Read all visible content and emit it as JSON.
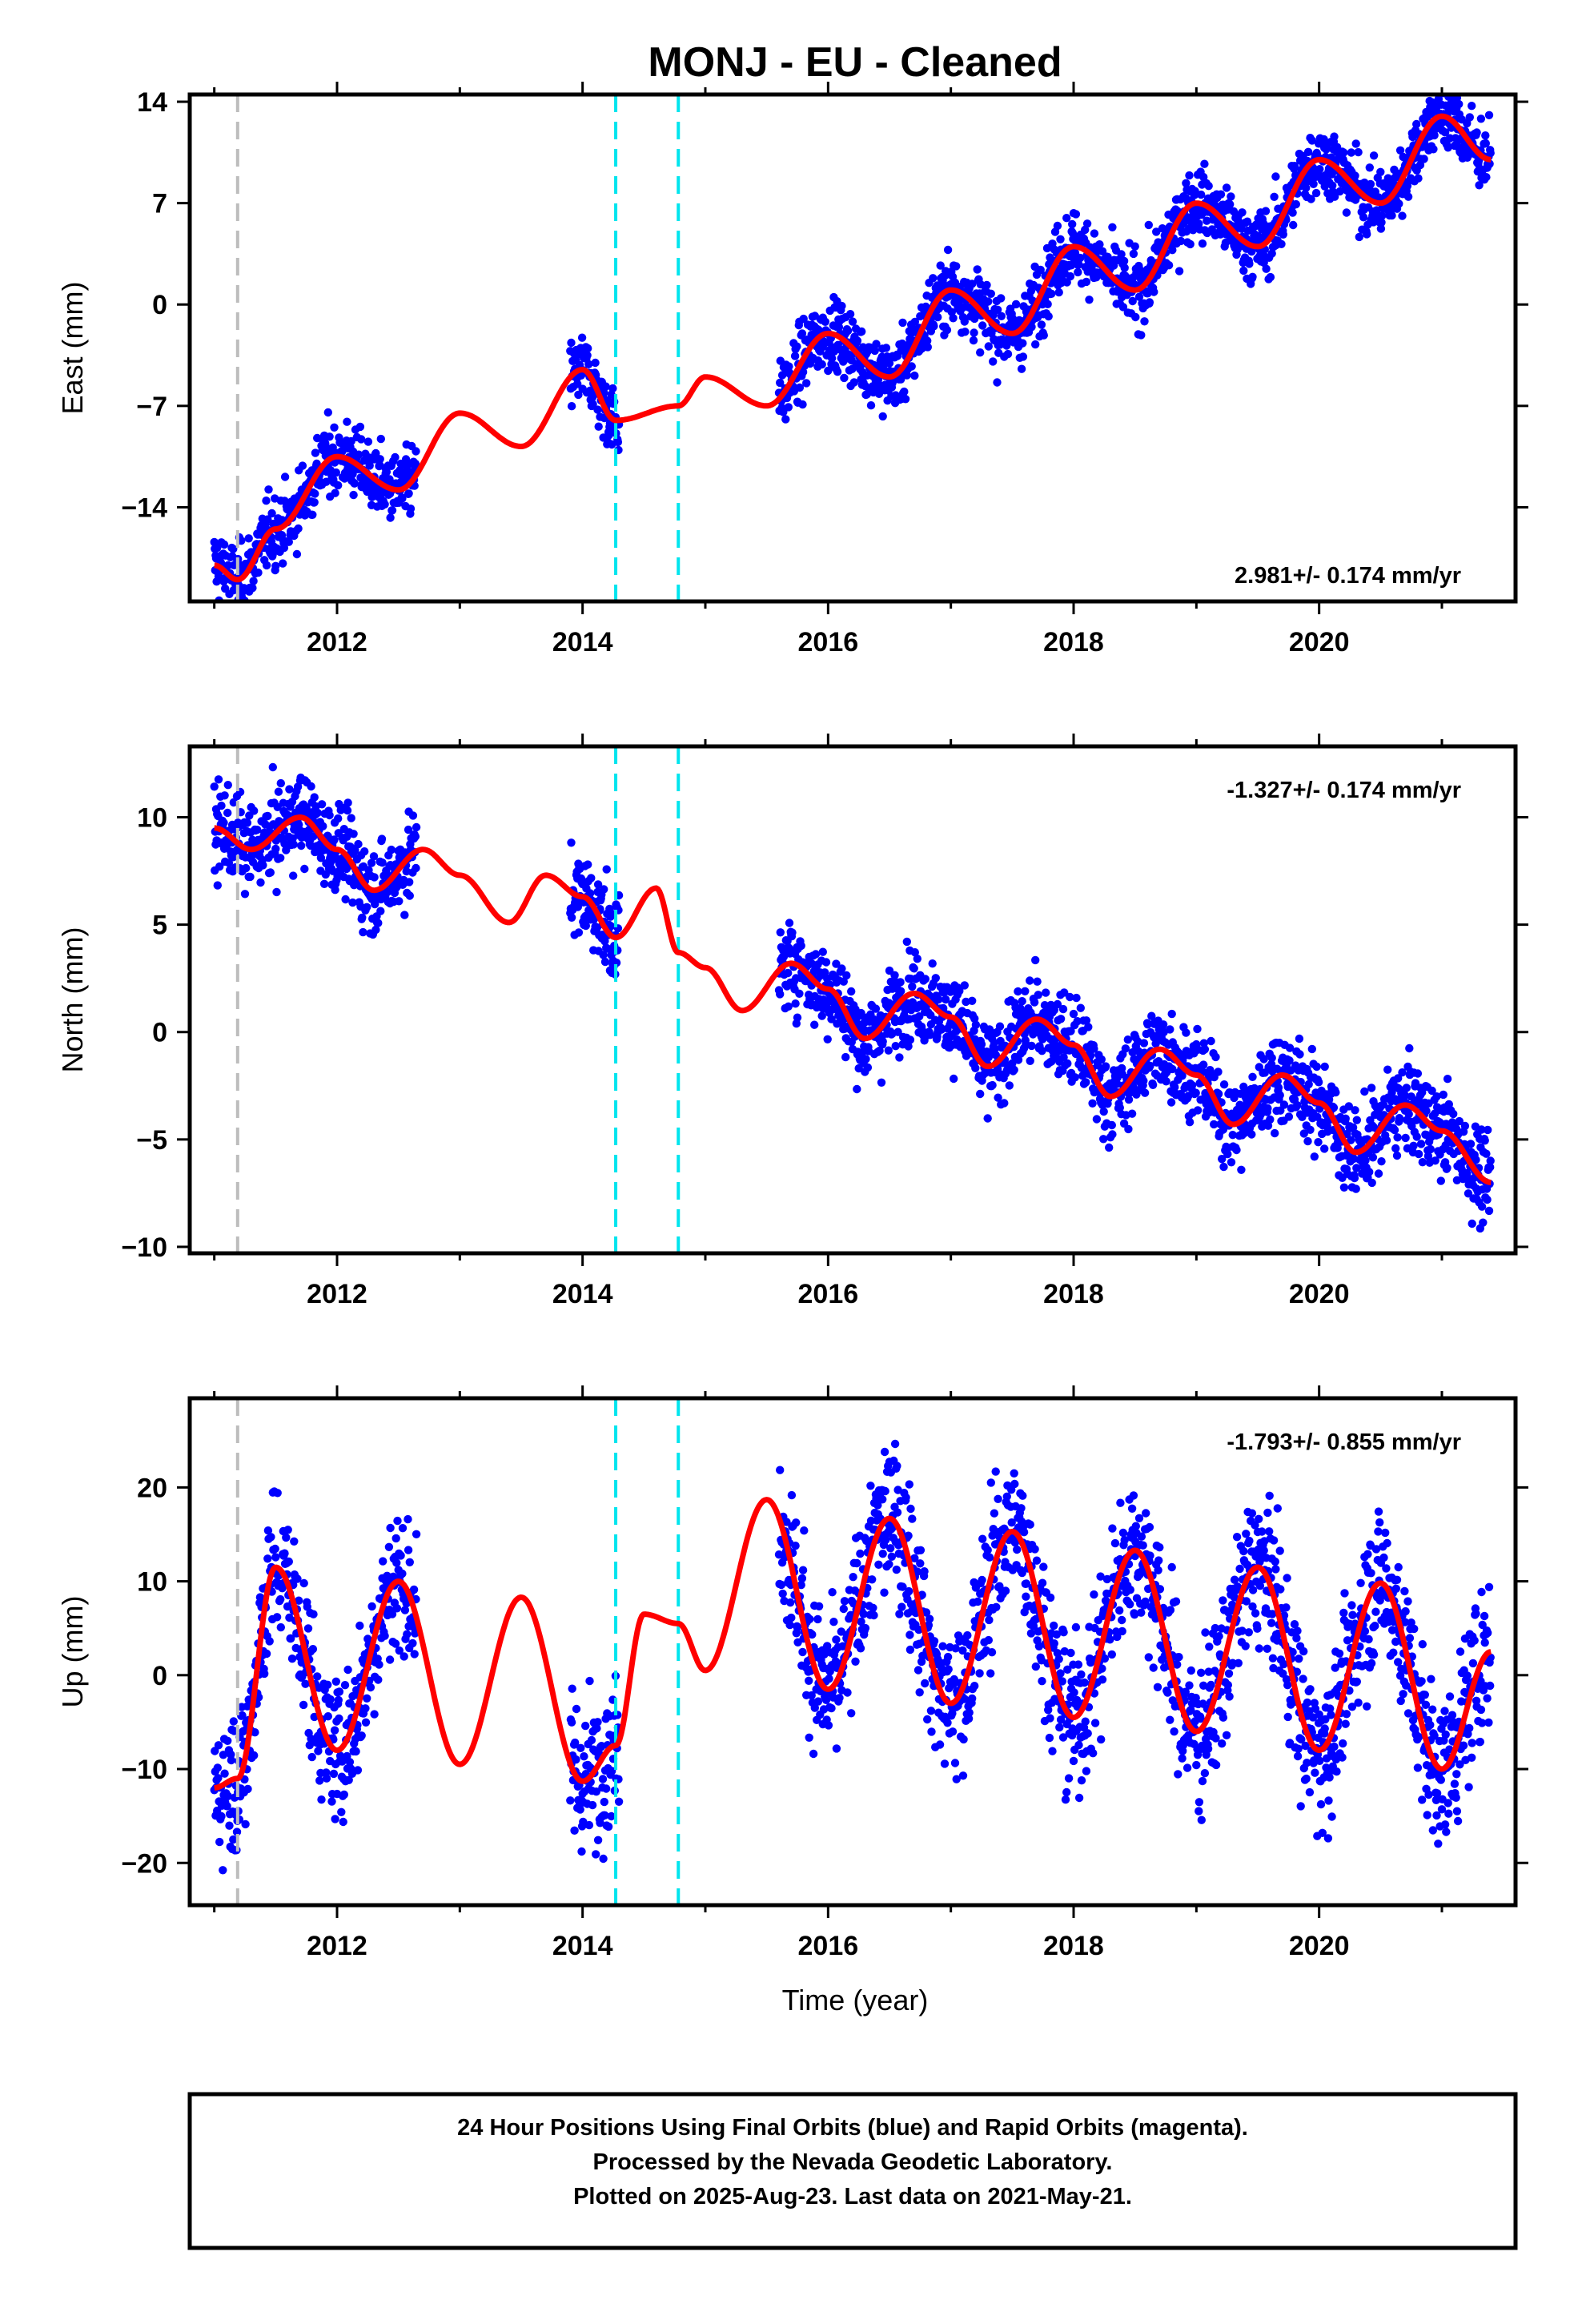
{
  "title": "MONJ  - EU - Cleaned",
  "xlabel": "Time (year)",
  "footer": {
    "line1": "24 Hour Positions Using Final Orbits (blue) and Rapid Orbits (magenta).",
    "line2": "Processed by the Nevada Geodetic Laboratory.",
    "line3": "Plotted on 2025-Aug-23. Last data on 2021-May-21."
  },
  "colors": {
    "data": "#0000ff",
    "model": "#ff0000",
    "equipment_change": "#00e5ee",
    "earthquake": "#bdbdbd",
    "frame": "#000000"
  },
  "chart_data": [
    {
      "type": "scatter",
      "component": "east",
      "ylabel": "East (mm)",
      "rate": "2.981+/- 0.174 mm/yr",
      "ylim": [
        -20.5,
        14.5
      ],
      "yticks": [
        -14,
        -7,
        0,
        7,
        14
      ],
      "xlim": [
        2010.8,
        2021.6
      ],
      "xticks": [
        2012,
        2014,
        2016,
        2018,
        2020
      ],
      "equipment_change_lines": [
        2014.27,
        2014.78
      ],
      "earthquake_lines": [
        2011.19
      ],
      "data_segments": [
        [
          2011.0,
          2012.65
        ],
        [
          2013.9,
          2014.3
        ],
        [
          2015.6,
          2021.4
        ]
      ],
      "series": [
        {
          "role": "daily positions (blue)",
          "x_span": [
            2011.0,
            2021.4
          ],
          "trend": "rising",
          "scatter_mm": 1.2
        },
        {
          "role": "model (red)",
          "x": [
            2011.0,
            2011.19,
            2011.5,
            2012.0,
            2012.5,
            2013.0,
            2013.5,
            2014.0,
            2014.27,
            2014.78,
            2015.0,
            2015.5,
            2016.0,
            2016.5,
            2017.0,
            2017.5,
            2018.0,
            2018.5,
            2019.0,
            2019.5,
            2020.0,
            2020.5,
            2021.0,
            2021.4
          ],
          "y": [
            -18.0,
            -19.0,
            -15.5,
            -10.5,
            -12.8,
            -7.5,
            -9.8,
            -4.5,
            -8.0,
            -7.0,
            -5.0,
            -7.0,
            -2.0,
            -5.0,
            1.0,
            -2.0,
            4.0,
            1.0,
            7.0,
            4.0,
            10.0,
            7.0,
            13.0,
            10.0
          ]
        }
      ]
    },
    {
      "type": "scatter",
      "component": "north",
      "ylabel": "North (mm)",
      "rate": "-1.327+/- 0.174 mm/yr",
      "ylim": [
        -10.3,
        13.3
      ],
      "yticks": [
        -10,
        -5,
        0,
        5,
        10
      ],
      "xlim": [
        2010.8,
        2021.6
      ],
      "xticks": [
        2012,
        2014,
        2016,
        2018,
        2020
      ],
      "equipment_change_lines": [
        2014.27,
        2014.78
      ],
      "earthquake_lines": [
        2011.19
      ],
      "data_segments": [
        [
          2011.0,
          2012.65
        ],
        [
          2013.9,
          2014.3
        ],
        [
          2015.6,
          2021.4
        ]
      ],
      "series": [
        {
          "role": "daily positions (blue)",
          "x_span": [
            2011.0,
            2021.4
          ],
          "trend": "falling",
          "scatter_mm": 1.0
        },
        {
          "role": "model (red)",
          "x": [
            2011.0,
            2011.3,
            2011.7,
            2012.0,
            2012.3,
            2012.7,
            2013.0,
            2013.4,
            2013.7,
            2014.0,
            2014.27,
            2014.6,
            2014.78,
            2015.0,
            2015.3,
            2015.7,
            2016.0,
            2016.3,
            2016.7,
            2017.0,
            2017.3,
            2017.7,
            2018.0,
            2018.3,
            2018.7,
            2019.0,
            2019.3,
            2019.7,
            2020.0,
            2020.3,
            2020.7,
            2021.0,
            2021.4
          ],
          "y": [
            9.5,
            8.5,
            10.0,
            8.5,
            6.6,
            8.5,
            7.3,
            5.1,
            7.3,
            6.3,
            4.4,
            6.7,
            3.7,
            3.0,
            1.0,
            3.2,
            2.0,
            -0.3,
            1.8,
            0.7,
            -1.6,
            0.6,
            -0.6,
            -3.0,
            -0.8,
            -2.0,
            -4.3,
            -2.0,
            -3.3,
            -5.6,
            -3.4,
            -4.6,
            -7.0
          ]
        }
      ]
    },
    {
      "type": "scatter",
      "component": "up",
      "ylabel": "Up (mm)",
      "rate": "-1.793+/- 0.855 mm/yr",
      "ylim": [
        -24.5,
        29.5
      ],
      "yticks": [
        -20,
        -10,
        0,
        10,
        20
      ],
      "xlim": [
        2010.8,
        2021.6
      ],
      "xticks": [
        2012,
        2014,
        2016,
        2018,
        2020
      ],
      "equipment_change_lines": [
        2014.27,
        2014.78
      ],
      "earthquake_lines": [
        2011.19
      ],
      "data_segments": [
        [
          2011.0,
          2012.65
        ],
        [
          2013.9,
          2014.3
        ],
        [
          2015.6,
          2021.4
        ]
      ],
      "series": [
        {
          "role": "daily positions (blue)",
          "x_span": [
            2011.0,
            2021.4
          ],
          "trend": "annual cycle",
          "scatter_mm": 4.0
        },
        {
          "role": "model (red)",
          "x": [
            2011.0,
            2011.19,
            2011.5,
            2012.0,
            2012.5,
            2013.0,
            2013.5,
            2014.0,
            2014.27,
            2014.5,
            2014.78,
            2015.0,
            2015.5,
            2016.0,
            2016.5,
            2017.0,
            2017.5,
            2018.0,
            2018.5,
            2019.0,
            2019.5,
            2020.0,
            2020.5,
            2021.0,
            2021.4
          ],
          "y": [
            -12.0,
            -11.0,
            11.5,
            -8.0,
            10.0,
            -9.5,
            8.3,
            -11.3,
            -7.5,
            6.5,
            5.5,
            0.5,
            18.7,
            -1.5,
            16.7,
            -3.0,
            15.3,
            -4.5,
            13.3,
            -6.0,
            11.5,
            -8.0,
            9.8,
            -10.0,
            2.5
          ]
        }
      ]
    }
  ]
}
